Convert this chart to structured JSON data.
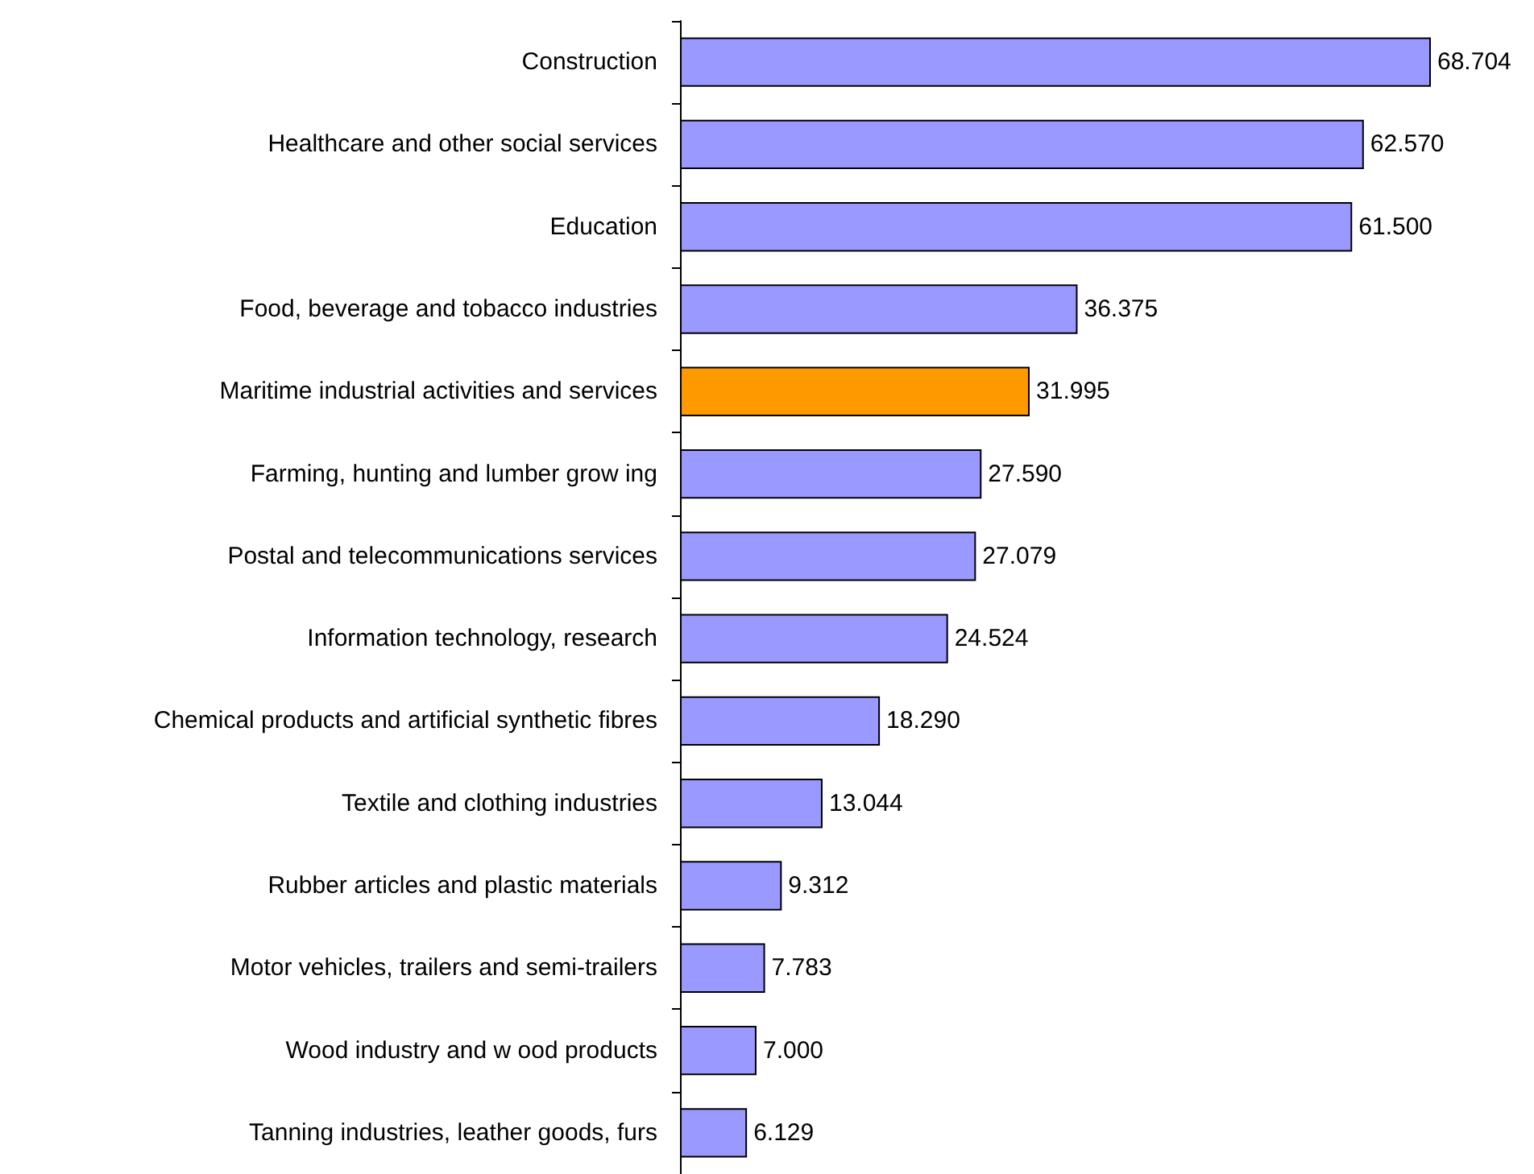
{
  "chart_data": {
    "type": "bar",
    "orientation": "horizontal",
    "categories": [
      "Construction",
      "Healthcare and other social services",
      "Education",
      "Food, beverage and tobacco industries",
      "Maritime industrial activities and services",
      "Farming, hunting and lumber grow ing",
      "Postal and telecommunications services",
      "Information technology, research",
      "Chemical products and artificial synthetic fibres",
      "Textile and clothing industries",
      "Rubber articles and plastic materials",
      "Motor vehicles, trailers and semi-trailers",
      "Wood industry and w ood products",
      "Tanning industries, leather goods, furs"
    ],
    "values": [
      68.704,
      62.57,
      61.5,
      36.375,
      31.995,
      27.59,
      27.079,
      24.524,
      18.29,
      13.044,
      9.312,
      7.783,
      7.0,
      6.129
    ],
    "value_labels": [
      "68.704",
      "62.570",
      "61.500",
      "36.375",
      "31.995",
      "27.590",
      "27.079",
      "24.524",
      "18.290",
      "13.044",
      "9.312",
      "7.783",
      "7.000",
      "6.129"
    ],
    "colors": [
      "#9999ff",
      "#9999ff",
      "#9999ff",
      "#9999ff",
      "#ff9900",
      "#9999ff",
      "#9999ff",
      "#9999ff",
      "#9999ff",
      "#9999ff",
      "#9999ff",
      "#9999ff",
      "#9999ff",
      "#9999ff"
    ]
  }
}
